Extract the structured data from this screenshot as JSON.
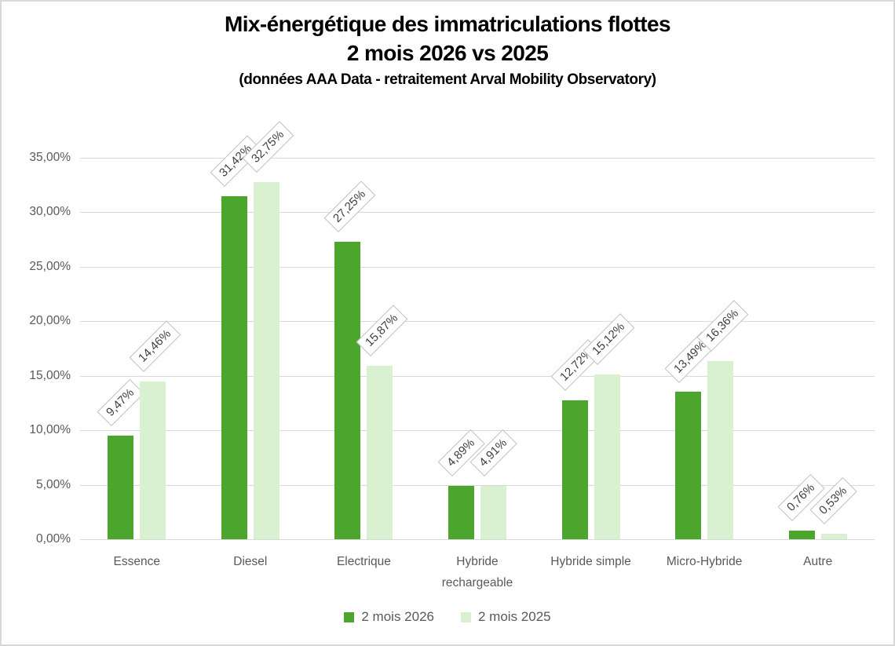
{
  "chart_data": {
    "type": "bar",
    "title_line1": "Mix-énergétique des immatriculations flottes",
    "title_line2": "2 mois 2026 vs 2025",
    "subtitle": "(données AAA Data - retraitement Arval Mobility Observatory)",
    "categories": [
      "Essence",
      "Diesel",
      "Electrique",
      "Hybride rechargeable",
      "Hybride simple",
      "Micro-Hybride",
      "Autre"
    ],
    "series": [
      {
        "name": "2 mois 2026",
        "color": "#4CA62E",
        "values": [
          9.47,
          31.42,
          27.25,
          4.89,
          12.72,
          13.49,
          0.76
        ],
        "labels": [
          "9,47%",
          "31,42%",
          "27,25%",
          "4,89%",
          "12,72%",
          "13,49%",
          "0,76%"
        ]
      },
      {
        "name": "2 mois 2025",
        "color": "#D9F1D0",
        "values": [
          14.46,
          32.75,
          15.87,
          4.91,
          15.12,
          16.36,
          0.53
        ],
        "labels": [
          "14,46%",
          "32,75%",
          "15,87%",
          "4,91%",
          "15,12%",
          "16,36%",
          "0,53%"
        ]
      }
    ],
    "y_axis": {
      "min": 0,
      "max": 35,
      "step": 5,
      "tick_labels": [
        "0,00%",
        "5,00%",
        "10,00%",
        "15,00%",
        "20,00%",
        "25,00%",
        "30,00%",
        "35,00%"
      ]
    },
    "grid": true,
    "legend_position": "bottom",
    "colors": {
      "grid": "#d9d9d9",
      "axis_text": "#595959",
      "label_text": "#404040",
      "label_border": "#bfbfbf"
    }
  }
}
